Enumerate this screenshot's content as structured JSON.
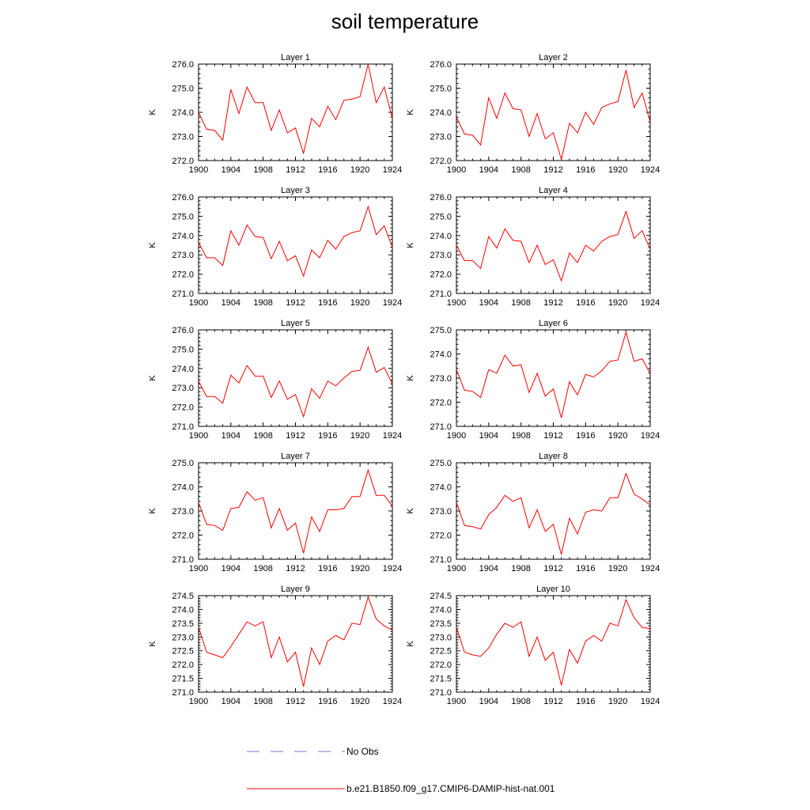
{
  "title": "soil temperature",
  "legend": {
    "entries": [
      {
        "label": "No Obs",
        "color": "#7777cc",
        "style": "dashed"
      },
      {
        "label": "b.e21.B1850.f09_g17.CMIP6-DAMIP-hist-nat.001",
        "color": "#ff0000",
        "style": "solid"
      }
    ]
  },
  "chart_data": [
    {
      "type": "line",
      "title": "Layer 1",
      "ylabel": "K",
      "xlim": [
        1900,
        1924
      ],
      "ylim": [
        272.0,
        276.0
      ],
      "xticks": [
        "1900",
        "1904",
        "1908",
        "1912",
        "1916",
        "1920",
        "1924"
      ],
      "yticks": [
        "272.0",
        "273.0",
        "274.0",
        "275.0",
        "276.0"
      ],
      "x": [
        1900,
        1901,
        1902,
        1903,
        1904,
        1905,
        1906,
        1907,
        1908,
        1909,
        1910,
        1911,
        1912,
        1913,
        1914,
        1915,
        1916,
        1917,
        1918,
        1919,
        1920,
        1921,
        1922,
        1923,
        1924
      ],
      "series": [
        {
          "name": "b.e21.B1850.f09_g17.CMIP6-DAMIP-hist-nat.001",
          "color": "#ff0000",
          "values": [
            274.0,
            273.3,
            273.25,
            272.85,
            274.95,
            273.95,
            275.05,
            274.4,
            274.4,
            273.25,
            274.1,
            273.15,
            273.35,
            272.3,
            273.75,
            273.4,
            274.25,
            273.7,
            274.5,
            274.55,
            274.65,
            276.0,
            274.4,
            275.05,
            273.75
          ]
        }
      ]
    },
    {
      "type": "line",
      "title": "Layer 2",
      "ylabel": "K",
      "xlim": [
        1900,
        1924
      ],
      "ylim": [
        272.0,
        276.0
      ],
      "xticks": [
        "1900",
        "1904",
        "1908",
        "1912",
        "1916",
        "1920",
        "1924"
      ],
      "yticks": [
        "272.0",
        "273.0",
        "274.0",
        "275.0",
        "276.0"
      ],
      "x": [
        1900,
        1901,
        1902,
        1903,
        1904,
        1905,
        1906,
        1907,
        1908,
        1909,
        1910,
        1911,
        1912,
        1913,
        1914,
        1915,
        1916,
        1917,
        1918,
        1919,
        1920,
        1921,
        1922,
        1923,
        1924
      ],
      "series": [
        {
          "name": "b.e21.B1850.f09_g17.CMIP6-DAMIP-hist-nat.001",
          "color": "#ff0000",
          "values": [
            273.8,
            273.1,
            273.05,
            272.65,
            274.6,
            273.75,
            274.8,
            274.15,
            274.1,
            273.0,
            273.95,
            272.9,
            273.15,
            272.05,
            273.55,
            273.15,
            274.0,
            273.5,
            274.2,
            274.35,
            274.45,
            275.75,
            274.2,
            274.8,
            273.6
          ]
        }
      ]
    },
    {
      "type": "line",
      "title": "Layer 3",
      "ylabel": "K",
      "xlim": [
        1900,
        1924
      ],
      "ylim": [
        271.0,
        276.0
      ],
      "xticks": [
        "1900",
        "1904",
        "1908",
        "1912",
        "1916",
        "1920",
        "1924"
      ],
      "yticks": [
        "271.0",
        "272.0",
        "273.0",
        "274.0",
        "275.0",
        "276.0"
      ],
      "x": [
        1900,
        1901,
        1902,
        1903,
        1904,
        1905,
        1906,
        1907,
        1908,
        1909,
        1910,
        1911,
        1912,
        1913,
        1914,
        1915,
        1916,
        1917,
        1918,
        1919,
        1920,
        1921,
        1922,
        1923,
        1924
      ],
      "series": [
        {
          "name": "b.e21.B1850.f09_g17.CMIP6-DAMIP-hist-nat.001",
          "color": "#ff0000",
          "values": [
            273.65,
            272.85,
            272.85,
            272.45,
            274.25,
            273.5,
            274.55,
            273.95,
            273.9,
            272.8,
            273.7,
            272.7,
            272.95,
            271.9,
            273.25,
            272.85,
            273.75,
            273.3,
            273.95,
            274.15,
            274.25,
            275.5,
            274.05,
            274.5,
            273.4
          ]
        }
      ]
    },
    {
      "type": "line",
      "title": "Layer 4",
      "ylabel": "K",
      "xlim": [
        1900,
        1924
      ],
      "ylim": [
        271.0,
        276.0
      ],
      "xticks": [
        "1900",
        "1904",
        "1908",
        "1912",
        "1916",
        "1920",
        "1924"
      ],
      "yticks": [
        "271.0",
        "272.0",
        "273.0",
        "274.0",
        "275.0",
        "276.0"
      ],
      "x": [
        1900,
        1901,
        1902,
        1903,
        1904,
        1905,
        1906,
        1907,
        1908,
        1909,
        1910,
        1911,
        1912,
        1913,
        1914,
        1915,
        1916,
        1917,
        1918,
        1919,
        1920,
        1921,
        1922,
        1923,
        1924
      ],
      "series": [
        {
          "name": "b.e21.B1850.f09_g17.CMIP6-DAMIP-hist-nat.001",
          "color": "#ff0000",
          "values": [
            273.5,
            272.7,
            272.7,
            272.3,
            273.95,
            273.35,
            274.35,
            273.75,
            273.7,
            272.6,
            273.5,
            272.5,
            272.75,
            271.65,
            273.1,
            272.6,
            273.5,
            273.2,
            273.7,
            273.95,
            274.05,
            275.25,
            273.85,
            274.25,
            273.3
          ]
        }
      ]
    },
    {
      "type": "line",
      "title": "Layer 5",
      "ylabel": "K",
      "xlim": [
        1900,
        1924
      ],
      "ylim": [
        271.0,
        276.0
      ],
      "xticks": [
        "1900",
        "1904",
        "1908",
        "1912",
        "1916",
        "1920",
        "1924"
      ],
      "yticks": [
        "271.0",
        "272.0",
        "273.0",
        "274.0",
        "275.0",
        "276.0"
      ],
      "x": [
        1900,
        1901,
        1902,
        1903,
        1904,
        1905,
        1906,
        1907,
        1908,
        1909,
        1910,
        1911,
        1912,
        1913,
        1914,
        1915,
        1916,
        1917,
        1918,
        1919,
        1920,
        1921,
        1922,
        1923,
        1924
      ],
      "series": [
        {
          "name": "b.e21.B1850.f09_g17.CMIP6-DAMIP-hist-nat.001",
          "color": "#ff0000",
          "values": [
            273.35,
            272.55,
            272.55,
            272.2,
            273.65,
            273.25,
            274.15,
            273.6,
            273.6,
            272.5,
            273.35,
            272.4,
            272.65,
            271.5,
            272.95,
            272.45,
            273.35,
            273.1,
            273.5,
            273.85,
            273.9,
            275.1,
            273.8,
            274.05,
            273.2
          ]
        }
      ]
    },
    {
      "type": "line",
      "title": "Layer 6",
      "ylabel": "K",
      "xlim": [
        1900,
        1924
      ],
      "ylim": [
        271.0,
        275.0
      ],
      "xticks": [
        "1900",
        "1904",
        "1908",
        "1912",
        "1916",
        "1920",
        "1924"
      ],
      "yticks": [
        "271.0",
        "272.0",
        "273.0",
        "274.0",
        "275.0"
      ],
      "x": [
        1900,
        1901,
        1902,
        1903,
        1904,
        1905,
        1906,
        1907,
        1908,
        1909,
        1910,
        1911,
        1912,
        1913,
        1914,
        1915,
        1916,
        1917,
        1918,
        1919,
        1920,
        1921,
        1922,
        1923,
        1924
      ],
      "series": [
        {
          "name": "b.e21.B1850.f09_g17.CMIP6-DAMIP-hist-nat.001",
          "color": "#ff0000",
          "values": [
            273.35,
            272.5,
            272.45,
            272.2,
            273.35,
            273.2,
            273.95,
            273.5,
            273.55,
            272.4,
            273.2,
            272.25,
            272.55,
            271.35,
            272.85,
            272.3,
            273.15,
            273.05,
            273.3,
            273.7,
            273.75,
            274.9,
            273.7,
            273.8,
            273.2
          ]
        }
      ]
    },
    {
      "type": "line",
      "title": "Layer 7",
      "ylabel": "K",
      "xlim": [
        1900,
        1924
      ],
      "ylim": [
        271.0,
        275.0
      ],
      "xticks": [
        "1900",
        "1904",
        "1908",
        "1912",
        "1916",
        "1920",
        "1924"
      ],
      "yticks": [
        "271.0",
        "272.0",
        "273.0",
        "274.0",
        "275.0"
      ],
      "x": [
        1900,
        1901,
        1902,
        1903,
        1904,
        1905,
        1906,
        1907,
        1908,
        1909,
        1910,
        1911,
        1912,
        1913,
        1914,
        1915,
        1916,
        1917,
        1918,
        1919,
        1920,
        1921,
        1922,
        1923,
        1924
      ],
      "series": [
        {
          "name": "b.e21.B1850.f09_g17.CMIP6-DAMIP-hist-nat.001",
          "color": "#ff0000",
          "values": [
            273.35,
            272.45,
            272.4,
            272.2,
            273.1,
            273.15,
            273.8,
            273.45,
            273.55,
            272.3,
            273.1,
            272.2,
            272.5,
            271.25,
            272.75,
            272.15,
            273.05,
            273.05,
            273.1,
            273.6,
            273.6,
            274.7,
            273.65,
            273.65,
            273.2
          ]
        }
      ]
    },
    {
      "type": "line",
      "title": "Layer 8",
      "ylabel": "K",
      "xlim": [
        1900,
        1924
      ],
      "ylim": [
        271.0,
        275.0
      ],
      "xticks": [
        "1900",
        "1904",
        "1908",
        "1912",
        "1916",
        "1920",
        "1924"
      ],
      "yticks": [
        "271.0",
        "272.0",
        "273.0",
        "274.0",
        "275.0"
      ],
      "x": [
        1900,
        1901,
        1902,
        1903,
        1904,
        1905,
        1906,
        1907,
        1908,
        1909,
        1910,
        1911,
        1912,
        1913,
        1914,
        1915,
        1916,
        1917,
        1918,
        1919,
        1920,
        1921,
        1922,
        1923,
        1924
      ],
      "series": [
        {
          "name": "b.e21.B1850.f09_g17.CMIP6-DAMIP-hist-nat.001",
          "color": "#ff0000",
          "values": [
            273.35,
            272.4,
            272.35,
            272.25,
            272.85,
            273.15,
            273.65,
            273.4,
            273.55,
            272.3,
            273.05,
            272.15,
            272.45,
            271.2,
            272.7,
            272.05,
            272.95,
            273.05,
            273.0,
            273.55,
            273.55,
            274.55,
            273.7,
            273.5,
            273.25
          ]
        }
      ]
    },
    {
      "type": "line",
      "title": "Layer 9",
      "ylabel": "K",
      "xlim": [
        1900,
        1924
      ],
      "ylim": [
        271.0,
        274.5
      ],
      "xticks": [
        "1900",
        "1904",
        "1908",
        "1912",
        "1916",
        "1920",
        "1924"
      ],
      "yticks": [
        "271.0",
        "271.5",
        "272.0",
        "272.5",
        "273.0",
        "273.5",
        "274.0",
        "274.5"
      ],
      "x": [
        1900,
        1901,
        1902,
        1903,
        1904,
        1905,
        1906,
        1907,
        1908,
        1909,
        1910,
        1911,
        1912,
        1913,
        1914,
        1915,
        1916,
        1917,
        1918,
        1919,
        1920,
        1921,
        1922,
        1923,
        1924
      ],
      "series": [
        {
          "name": "b.e21.B1850.f09_g17.CMIP6-DAMIP-hist-nat.001",
          "color": "#ff0000",
          "values": [
            273.35,
            272.45,
            272.35,
            272.25,
            272.65,
            273.1,
            273.55,
            273.4,
            273.55,
            272.25,
            273.0,
            272.1,
            272.45,
            271.2,
            272.6,
            272.0,
            272.85,
            273.05,
            272.9,
            273.5,
            273.45,
            274.45,
            273.65,
            273.4,
            273.25
          ]
        }
      ]
    },
    {
      "type": "line",
      "title": "Layer 10",
      "ylabel": "K",
      "xlim": [
        1900,
        1924
      ],
      "ylim": [
        271.0,
        274.5
      ],
      "xticks": [
        "1900",
        "1904",
        "1908",
        "1912",
        "1916",
        "1920",
        "1924"
      ],
      "yticks": [
        "271.0",
        "271.5",
        "272.0",
        "272.5",
        "273.0",
        "273.5",
        "274.0",
        "274.5"
      ],
      "x": [
        1900,
        1901,
        1902,
        1903,
        1904,
        1905,
        1906,
        1907,
        1908,
        1909,
        1910,
        1911,
        1912,
        1913,
        1914,
        1915,
        1916,
        1917,
        1918,
        1919,
        1920,
        1921,
        1922,
        1923,
        1924
      ],
      "series": [
        {
          "name": "b.e21.B1850.f09_g17.CMIP6-DAMIP-hist-nat.001",
          "color": "#ff0000",
          "values": [
            273.35,
            272.45,
            272.35,
            272.3,
            272.6,
            273.1,
            273.5,
            273.35,
            273.55,
            272.3,
            273.0,
            272.15,
            272.45,
            271.25,
            272.55,
            272.05,
            272.85,
            273.05,
            272.85,
            273.5,
            273.4,
            274.35,
            273.7,
            273.35,
            273.3
          ]
        }
      ]
    }
  ]
}
